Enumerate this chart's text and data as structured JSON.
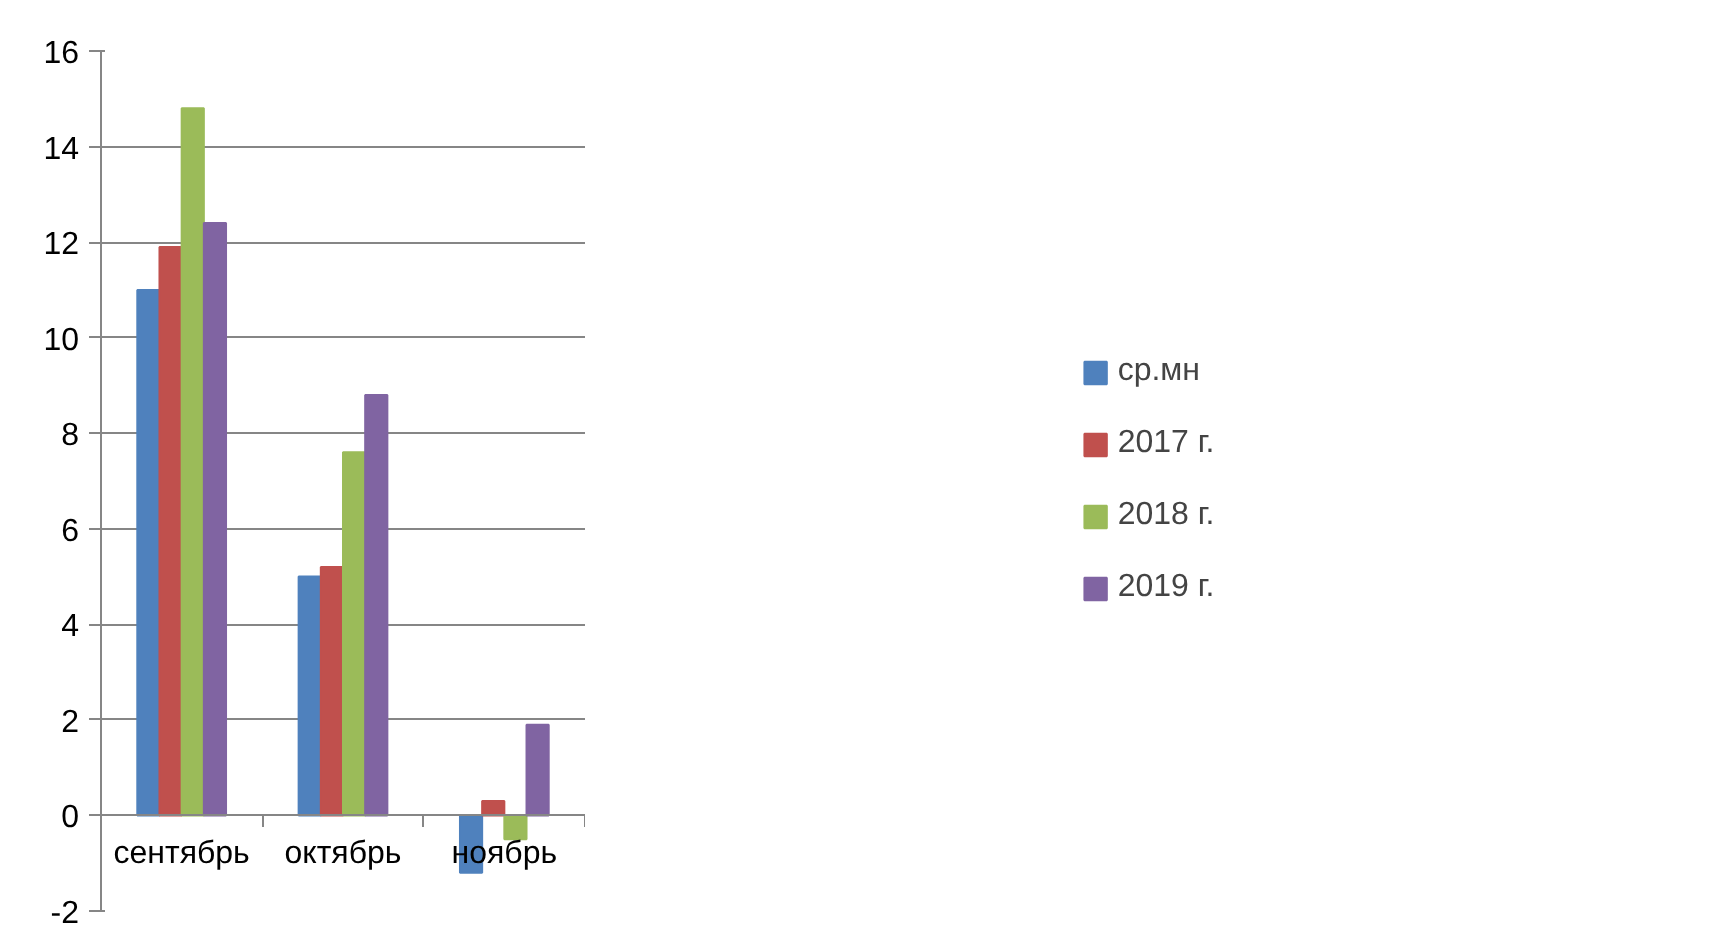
{
  "chart_data": {
    "type": "bar",
    "categories": [
      "сентябрь",
      "октябрь",
      "ноябрь"
    ],
    "series": [
      {
        "name": "ср.мн",
        "color": "#4f81bd",
        "values": [
          11.0,
          5.0,
          -1.2
        ]
      },
      {
        "name": "2017 г.",
        "color": "#c0504d",
        "values": [
          11.9,
          5.2,
          0.3
        ]
      },
      {
        "name": "2018 г.",
        "color": "#9bbb59",
        "values": [
          14.8,
          7.6,
          -0.5
        ]
      },
      {
        "name": "2019 г.",
        "color": "#8064a2",
        "values": [
          12.4,
          8.8,
          1.9
        ]
      }
    ],
    "ylim": [
      -2,
      16
    ],
    "yticks": [
      -2,
      0,
      2,
      4,
      6,
      8,
      10,
      12,
      14,
      16
    ],
    "grid": "y",
    "legend": "right"
  }
}
